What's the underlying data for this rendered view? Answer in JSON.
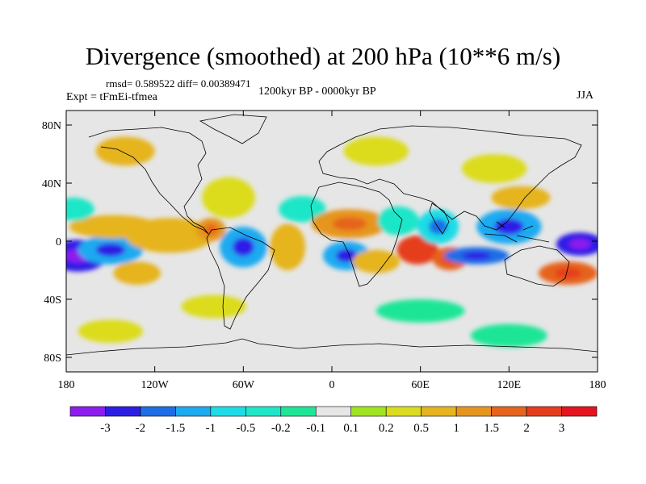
{
  "title": "Divergence (smoothed) at 200 hPa (10**6 m/s)",
  "stats": "rmsd= 0.589522 diff= 0.00389471",
  "experiment": "Expt = tFmEi-tfmea",
  "period": "1200kyr BP - 0000kyr BP",
  "season": "JJA",
  "map": {
    "projection": "cylindrical equidistant",
    "lon_range": [
      -180,
      180
    ],
    "lat_range": [
      -90,
      90
    ],
    "lat_ticks": [
      {
        "value": 80,
        "label": "80N"
      },
      {
        "value": 40,
        "label": "40N"
      },
      {
        "value": 0,
        "label": "0"
      },
      {
        "value": -40,
        "label": "40S"
      },
      {
        "value": -80,
        "label": "80S"
      }
    ],
    "lon_ticks": [
      {
        "value": -180,
        "label": "180"
      },
      {
        "value": -120,
        "label": "120W"
      },
      {
        "value": -60,
        "label": "60W"
      },
      {
        "value": 0,
        "label": "0"
      },
      {
        "value": 60,
        "label": "60E"
      },
      {
        "value": 120,
        "label": "120E"
      },
      {
        "value": 180,
        "label": "180"
      }
    ],
    "anomaly_regions": [
      {
        "lon": -172,
        "lat": -10,
        "rlon": 20,
        "rlat": 11,
        "value": -2.5
      },
      {
        "lon": -150,
        "lat": -6,
        "rlon": 22,
        "rlat": 10,
        "value": -1.5
      },
      {
        "lon": -148,
        "lat": 10,
        "rlon": 30,
        "rlat": 8,
        "value": 0.5
      },
      {
        "lon": -175,
        "lat": 22,
        "rlon": 14,
        "rlat": 8,
        "value": -0.5
      },
      {
        "lon": -110,
        "lat": 4,
        "rlon": 30,
        "rlat": 12,
        "value": 0.5
      },
      {
        "lon": -132,
        "lat": -22,
        "rlon": 16,
        "rlat": 8,
        "value": 0.5
      },
      {
        "lon": -82,
        "lat": 8,
        "rlon": 10,
        "rlat": 8,
        "value": 1
      },
      {
        "lon": -60,
        "lat": -4,
        "rlon": 16,
        "rlat": 14,
        "value": -1.5
      },
      {
        "lon": -30,
        "lat": -4,
        "rlon": 12,
        "rlat": 16,
        "value": 0.5
      },
      {
        "lon": -70,
        "lat": 30,
        "rlon": 18,
        "rlat": 14,
        "value": 0.2
      },
      {
        "lon": -20,
        "lat": 22,
        "rlon": 16,
        "rlat": 9,
        "value": -0.5
      },
      {
        "lon": 12,
        "lat": 12,
        "rlon": 26,
        "rlat": 10,
        "value": 1
      },
      {
        "lon": 10,
        "lat": -10,
        "rlon": 16,
        "rlat": 10,
        "value": -1.5
      },
      {
        "lon": 30,
        "lat": -14,
        "rlon": 16,
        "rlat": 8,
        "value": 0.5
      },
      {
        "lon": 45,
        "lat": 14,
        "rlon": 14,
        "rlat": 10,
        "value": -0.5
      },
      {
        "lon": 58,
        "lat": -6,
        "rlon": 14,
        "rlat": 10,
        "value": 2
      },
      {
        "lon": 80,
        "lat": -12,
        "rlon": 12,
        "rlat": 8,
        "value": 1.5
      },
      {
        "lon": 98,
        "lat": -10,
        "rlon": 22,
        "rlat": 6,
        "value": -2
      },
      {
        "lon": 72,
        "lat": 10,
        "rlon": 14,
        "rlat": 12,
        "value": -1
      },
      {
        "lon": 120,
        "lat": 10,
        "rlon": 22,
        "rlat": 12,
        "value": -1.5
      },
      {
        "lon": 128,
        "lat": 30,
        "rlon": 20,
        "rlat": 8,
        "value": 0.5
      },
      {
        "lon": 168,
        "lat": -2,
        "rlon": 16,
        "rlat": 8,
        "value": -2.5
      },
      {
        "lon": 160,
        "lat": -22,
        "rlon": 20,
        "rlat": 8,
        "value": 1.5
      },
      {
        "lon": 110,
        "lat": 50,
        "rlon": 22,
        "rlat": 10,
        "value": 0.2
      },
      {
        "lon": -140,
        "lat": 62,
        "rlon": 20,
        "rlat": 10,
        "value": 0.5
      },
      {
        "lon": 30,
        "lat": 62,
        "rlon": 22,
        "rlat": 10,
        "value": 0.2
      },
      {
        "lon": -80,
        "lat": -45,
        "rlon": 22,
        "rlat": 8,
        "value": 0.2
      },
      {
        "lon": 60,
        "lat": -48,
        "rlon": 30,
        "rlat": 8,
        "value": -0.2
      },
      {
        "lon": -150,
        "lat": -62,
        "rlon": 22,
        "rlat": 8,
        "value": 0.2
      },
      {
        "lon": 120,
        "lat": -65,
        "rlon": 26,
        "rlat": 8,
        "value": -0.2
      }
    ]
  },
  "colorbar": {
    "colors": [
      "#8c1ef0",
      "#2d1ee6",
      "#1e6ee6",
      "#1eaaf0",
      "#1edce6",
      "#1ee6c8",
      "#1ee696",
      "#e6e6e6",
      "#a0e61e",
      "#dcdc1e",
      "#e6b41e",
      "#e6961e",
      "#e6641e",
      "#e63c1e",
      "#e6141e"
    ],
    "labels": [
      "-3",
      "-2",
      "-1.5",
      "-1",
      "-0.5",
      "-0.2",
      "-0.1",
      "0.1",
      "0.2",
      "0.5",
      "1",
      "1.5",
      "2",
      "3"
    ],
    "levels": [
      -3,
      -2,
      -1.5,
      -1,
      -0.5,
      -0.2,
      -0.1,
      0.1,
      0.2,
      0.5,
      1,
      1.5,
      2,
      3
    ]
  }
}
